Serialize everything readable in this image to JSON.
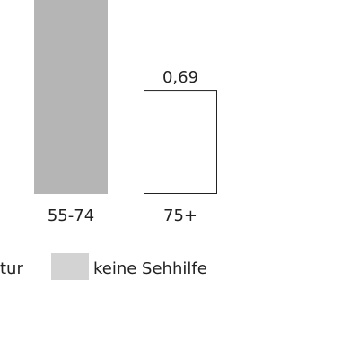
{
  "chart_data": {
    "type": "bar",
    "categories": [
      "55-74",
      "75+"
    ],
    "series": [
      {
        "values": [
          null,
          0.69
        ],
        "value_labels": [
          "",
          "0,69"
        ],
        "color": "#ffffff",
        "stroke": "#222222"
      },
      {
        "values": [
          1.65,
          null
        ],
        "color": "#b5b5b5"
      }
    ],
    "legend": {
      "items": [
        {
          "label": "tur",
          "color": "#ffffff"
        },
        {
          "label": "keine Sehhilfe",
          "color": "#d3d3d3"
        }
      ]
    }
  }
}
